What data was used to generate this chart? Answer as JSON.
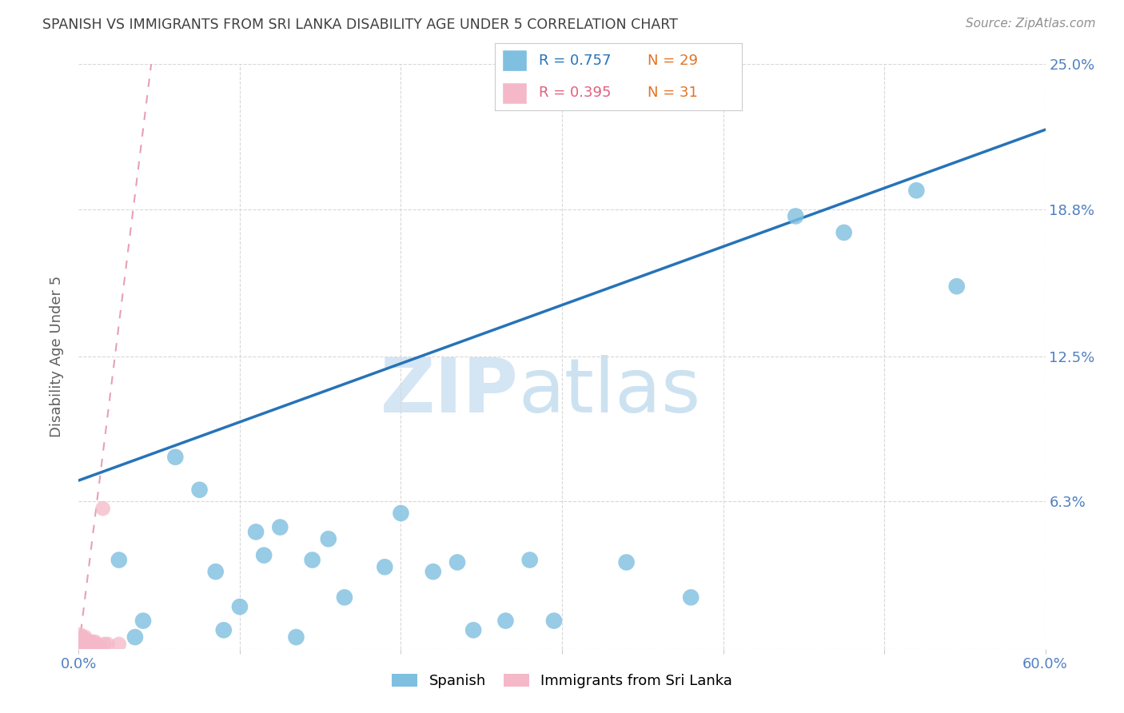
{
  "title": "SPANISH VS IMMIGRANTS FROM SRI LANKA DISABILITY AGE UNDER 5 CORRELATION CHART",
  "source": "Source: ZipAtlas.com",
  "ylabel": "Disability Age Under 5",
  "watermark_zip": "ZIP",
  "watermark_atlas": "atlas",
  "xlim": [
    0.0,
    0.6
  ],
  "ylim": [
    0.0,
    0.25
  ],
  "yticks": [
    0.0,
    0.063,
    0.125,
    0.188,
    0.25
  ],
  "ytick_labels": [
    "",
    "6.3%",
    "12.5%",
    "18.8%",
    "25.0%"
  ],
  "xticks": [
    0.0,
    0.1,
    0.2,
    0.3,
    0.4,
    0.5,
    0.6
  ],
  "xtick_labels": [
    "0.0%",
    "",
    "",
    "",
    "",
    "",
    "60.0%"
  ],
  "legend_blue_r": "R = 0.757",
  "legend_blue_n": "N = 29",
  "legend_pink_r": "R = 0.395",
  "legend_pink_n": "N = 31",
  "legend1_label": "Spanish",
  "legend2_label": "Immigrants from Sri Lanka",
  "blue_color": "#7fbfdf",
  "pink_color": "#f4b8c8",
  "line_blue_color": "#2673b8",
  "line_pink_color": "#e8a0b0",
  "blue_r_color": "#2673b8",
  "blue_n_color": "#e07428",
  "pink_r_color": "#e06080",
  "pink_n_color": "#e07428",
  "blue_scatter_x": [
    0.025,
    0.035,
    0.04,
    0.06,
    0.075,
    0.085,
    0.09,
    0.1,
    0.11,
    0.115,
    0.125,
    0.135,
    0.145,
    0.155,
    0.165,
    0.19,
    0.2,
    0.22,
    0.235,
    0.245,
    0.265,
    0.28,
    0.295,
    0.34,
    0.38,
    0.445,
    0.475,
    0.52,
    0.545
  ],
  "blue_scatter_y": [
    0.038,
    0.005,
    0.012,
    0.082,
    0.068,
    0.033,
    0.008,
    0.018,
    0.05,
    0.04,
    0.052,
    0.005,
    0.038,
    0.047,
    0.022,
    0.035,
    0.058,
    0.033,
    0.037,
    0.008,
    0.012,
    0.038,
    0.012,
    0.037,
    0.022,
    0.185,
    0.178,
    0.196,
    0.155
  ],
  "pink_scatter_x": [
    0.001,
    0.001,
    0.002,
    0.002,
    0.002,
    0.003,
    0.003,
    0.003,
    0.004,
    0.004,
    0.004,
    0.004,
    0.005,
    0.005,
    0.005,
    0.006,
    0.006,
    0.007,
    0.007,
    0.008,
    0.008,
    0.009,
    0.009,
    0.01,
    0.01,
    0.011,
    0.013,
    0.015,
    0.016,
    0.018,
    0.025
  ],
  "pink_scatter_y": [
    0.004,
    0.006,
    0.002,
    0.003,
    0.005,
    0.001,
    0.002,
    0.003,
    0.002,
    0.003,
    0.004,
    0.005,
    0.001,
    0.002,
    0.003,
    0.002,
    0.003,
    0.002,
    0.003,
    0.002,
    0.003,
    0.001,
    0.002,
    0.002,
    0.003,
    0.002,
    0.001,
    0.06,
    0.002,
    0.002,
    0.002
  ],
  "blue_line_x": [
    0.0,
    0.6
  ],
  "blue_line_y": [
    0.072,
    0.222
  ],
  "pink_line_x": [
    0.0,
    0.045
  ],
  "pink_line_y": [
    0.0,
    0.25
  ],
  "grid_color": "#d8d8d8",
  "bg_color": "#ffffff",
  "title_color": "#404040",
  "tick_label_color": "#5080c0"
}
